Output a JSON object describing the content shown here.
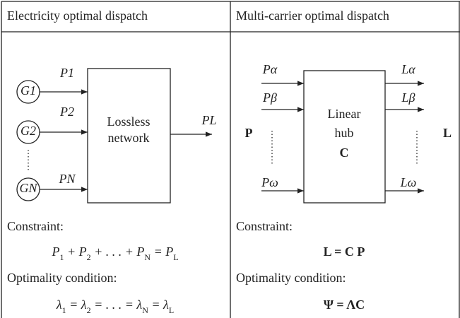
{
  "left": {
    "header": "Electricity optimal dispatch",
    "generators": [
      [
        "G",
        "1"
      ],
      [
        "G",
        "2"
      ],
      [
        "G",
        "N"
      ]
    ],
    "inputs": [
      [
        "P",
        "1"
      ],
      [
        "P",
        "2"
      ],
      [
        "P",
        "N"
      ]
    ],
    "box": [
      "Lossless",
      "network"
    ],
    "output": [
      "P",
      "L"
    ],
    "constraint_label": "Constraint:",
    "constraint": [
      [
        "P",
        "1"
      ],
      [
        " + P",
        "2"
      ],
      [
        " + . . . + P",
        "N"
      ],
      [
        " = P",
        "L"
      ]
    ],
    "optimality_label": "Optimality condition:",
    "optimality": [
      [
        "λ",
        "1"
      ],
      [
        " = λ",
        "2"
      ],
      [
        " = . . . = λ",
        "N"
      ],
      [
        " = λ",
        "L"
      ]
    ]
  },
  "right": {
    "header": "Multi-carrier optimal dispatch",
    "inputs": [
      [
        "P",
        "α"
      ],
      [
        "P",
        "β"
      ],
      [
        "P",
        "ω"
      ]
    ],
    "outputs": [
      [
        "L",
        "α"
      ],
      [
        "L",
        "β"
      ],
      [
        "L",
        "ω"
      ]
    ],
    "input_vector": "P",
    "output_vector": "L",
    "box": [
      "Linear",
      "hub"
    ],
    "box_matrix": "C",
    "constraint_label": "Constraint:",
    "constraint": "L = C P",
    "optimality_label": "Optimality condition:",
    "optimality": "Ψ = ΛC"
  }
}
